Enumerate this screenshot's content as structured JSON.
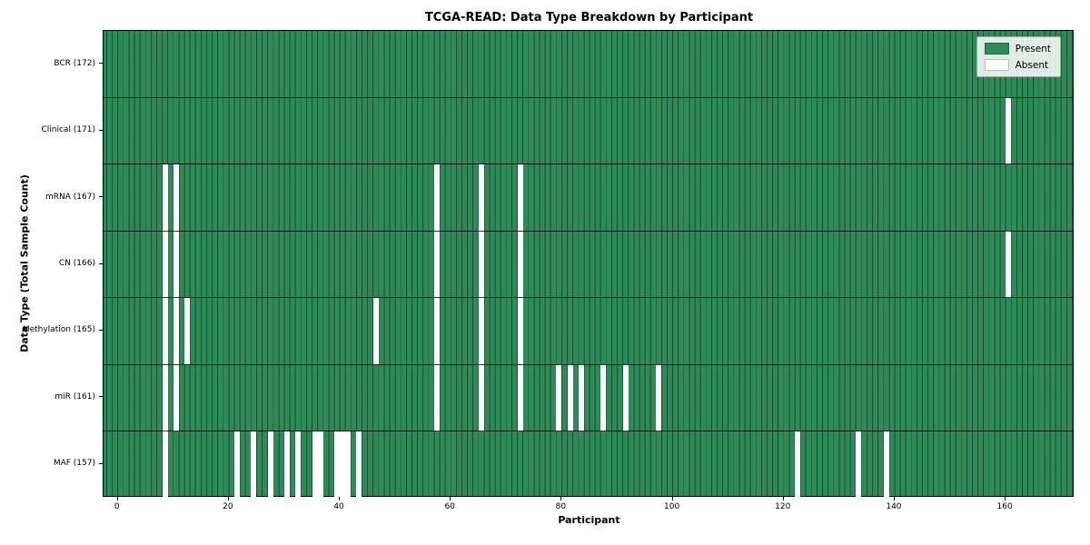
{
  "figure": {
    "title": "TCGA-READ: Data Type Breakdown by Participant",
    "xlabel": "Participant",
    "ylabel": "Data Type (Total Sample Count)"
  },
  "legend": {
    "present_label": "Present",
    "absent_label": "Absent",
    "present_color": "#2e8b57",
    "absent_color": "#ffffff"
  },
  "chart_data": {
    "type": "heatmap",
    "title": "TCGA-READ: Data Type Breakdown by Participant",
    "xlabel": "Participant",
    "ylabel": "Data Type (Total Sample Count)",
    "n_participants": 172,
    "x_ticks": [
      0,
      20,
      40,
      60,
      80,
      100,
      120,
      140,
      160
    ],
    "cell_present_color": "#2e8b57",
    "cell_absent_color": "#ffffff",
    "legend_position": "upper right",
    "rows": [
      {
        "label": "BCR (172)",
        "data_type": "BCR",
        "sample_count": 172,
        "absent_participants": []
      },
      {
        "label": "Clinical (171)",
        "data_type": "Clinical",
        "sample_count": 171,
        "absent_participants": [
          160
        ]
      },
      {
        "label": "mRNA (167)",
        "data_type": "mRNA",
        "sample_count": 167,
        "absent_participants": [
          8,
          10,
          57,
          65,
          72
        ]
      },
      {
        "label": "CN (166)",
        "data_type": "CN",
        "sample_count": 166,
        "absent_participants": [
          8,
          10,
          57,
          65,
          72,
          160
        ]
      },
      {
        "label": "Methylation (165)",
        "data_type": "Methylation",
        "sample_count": 165,
        "absent_participants": [
          8,
          10,
          12,
          46,
          57,
          65,
          72
        ]
      },
      {
        "label": "miR (161)",
        "data_type": "miR",
        "sample_count": 161,
        "absent_participants": [
          8,
          10,
          57,
          65,
          72,
          79,
          81,
          83,
          87,
          91,
          97
        ]
      },
      {
        "label": "MAF (157)",
        "data_type": "MAF",
        "sample_count": 157,
        "absent_participants": [
          8,
          21,
          24,
          27,
          30,
          32,
          35,
          36,
          39,
          40,
          41,
          43,
          122,
          133,
          138
        ]
      }
    ]
  }
}
